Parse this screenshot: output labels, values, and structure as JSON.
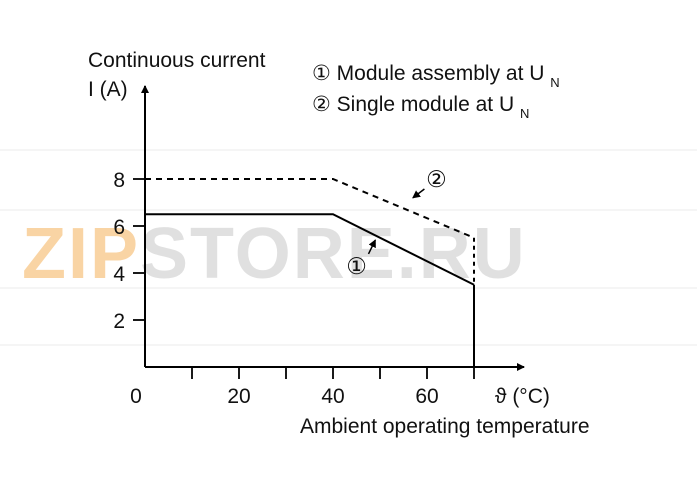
{
  "chart_data": {
    "type": "line",
    "title": "",
    "ylabel_line1": "Continuous current",
    "ylabel_line2": "I (A)",
    "xlabel": "Ambient operating temperature",
    "xunit": "ϑ (°C)",
    "xlim": [
      0,
      80
    ],
    "ylim": [
      0,
      10
    ],
    "x_ticks": [
      0,
      10,
      20,
      30,
      40,
      50,
      60,
      70
    ],
    "x_tick_labels": [
      {
        "value": 0,
        "label": "0"
      },
      {
        "value": 20,
        "label": "20"
      },
      {
        "value": 40,
        "label": "40"
      },
      {
        "value": 60,
        "label": "60"
      }
    ],
    "y_ticks": [
      {
        "value": 2,
        "label": "2"
      },
      {
        "value": 4,
        "label": "4"
      },
      {
        "value": 6,
        "label": "6"
      },
      {
        "value": 8,
        "label": "8"
      }
    ],
    "grid": false,
    "legend": [
      {
        "marker": "①",
        "text": "Module assembly at U",
        "subscript": "N"
      },
      {
        "marker": "②",
        "text": "Single module at U",
        "subscript": "N"
      }
    ],
    "legend_placement": "top-right",
    "series": [
      {
        "marker": "①",
        "style": "solid",
        "points": [
          [
            0,
            6.5
          ],
          [
            40,
            6.5
          ],
          [
            70,
            3.5
          ]
        ],
        "drop_to_zero_at": 70
      },
      {
        "marker": "②",
        "style": "dashed",
        "points": [
          [
            0,
            8
          ],
          [
            40,
            8
          ],
          [
            70,
            5.5
          ]
        ],
        "drop_to_y": 3.5
      }
    ],
    "annotations": [
      {
        "marker": "①",
        "arrow_to": [
          49,
          5.4
        ],
        "label_at": [
          45,
          4.3
        ]
      },
      {
        "marker": "②",
        "arrow_to": [
          57,
          7.2
        ],
        "label_at": [
          62,
          8.0
        ]
      }
    ],
    "watermark": {
      "text_main": "ZIP",
      "text_rest": "STORE.RU",
      "color_main": "#f5b25a",
      "color_rest": "#c8c8c8"
    }
  }
}
